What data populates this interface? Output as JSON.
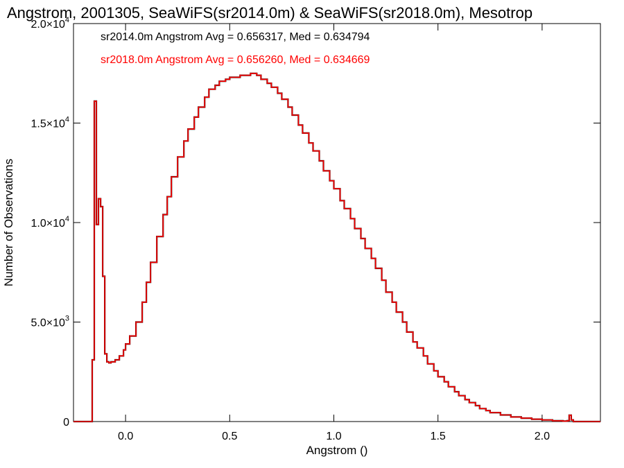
{
  "chart_data": {
    "type": "line",
    "title": "Angstrom, 2001305, SeaWiFS(sr2014.0m) & SeaWiFS(sr2018.0m), Mesotrop",
    "xlabel": "Angstrom ()",
    "ylabel": "Number of Observations",
    "xlim": [
      -0.25,
      2.28
    ],
    "ylim": [
      0,
      20000
    ],
    "x_ticks": [
      0.0,
      0.5,
      1.0,
      1.5,
      2.0
    ],
    "x_tick_labels": [
      "0.0",
      "0.5",
      "1.0",
      "1.5",
      "2.0"
    ],
    "y_ticks": [
      0,
      5000,
      10000,
      15000,
      20000
    ],
    "y_tick_labels": [
      {
        "mantissa": "0",
        "exponent": ""
      },
      {
        "mantissa": "5.0×10",
        "exponent": "3"
      },
      {
        "mantissa": "1.0×10",
        "exponent": "4"
      },
      {
        "mantissa": "1.5×10",
        "exponent": "4"
      },
      {
        "mantissa": "2.0×10",
        "exponent": "4"
      }
    ],
    "grid": false,
    "legend_placement": "top-left",
    "annotations": [
      {
        "text": "sr2014.0m Angstrom Avg = 0.656317, Med = 0.634794",
        "color": "#000000"
      },
      {
        "text": "sr2018.0m Angstrom Avg = 0.656260, Med = 0.634669",
        "color": "#ff0000"
      }
    ],
    "series": [
      {
        "color": "#000000",
        "style": "step",
        "x": [
          -0.25,
          -0.16,
          -0.15,
          -0.14,
          -0.13,
          -0.12,
          -0.11,
          -0.1,
          -0.09,
          -0.08,
          -0.07,
          -0.05,
          -0.03,
          -0.01,
          0.0,
          0.02,
          0.05,
          0.08,
          0.1,
          0.12,
          0.15,
          0.18,
          0.2,
          0.22,
          0.25,
          0.28,
          0.3,
          0.33,
          0.35,
          0.38,
          0.4,
          0.43,
          0.45,
          0.48,
          0.5,
          0.53,
          0.55,
          0.58,
          0.6,
          0.63,
          0.65,
          0.68,
          0.7,
          0.73,
          0.75,
          0.78,
          0.8,
          0.83,
          0.85,
          0.88,
          0.9,
          0.93,
          0.95,
          0.98,
          1.0,
          1.03,
          1.05,
          1.08,
          1.1,
          1.13,
          1.15,
          1.18,
          1.2,
          1.23,
          1.25,
          1.28,
          1.3,
          1.33,
          1.35,
          1.38,
          1.4,
          1.43,
          1.45,
          1.48,
          1.5,
          1.53,
          1.55,
          1.58,
          1.6,
          1.63,
          1.65,
          1.68,
          1.7,
          1.73,
          1.75,
          1.8,
          1.85,
          1.9,
          1.95,
          2.0,
          2.05,
          2.1,
          2.12,
          2.13,
          2.14,
          2.15,
          2.2,
          2.28
        ],
        "y": [
          0,
          3100,
          16100,
          9900,
          11200,
          10800,
          7300,
          3400,
          3000,
          2950,
          3000,
          3100,
          3300,
          3600,
          3900,
          4300,
          5000,
          6000,
          7000,
          8000,
          9300,
          10400,
          11300,
          12300,
          13300,
          14100,
          14700,
          15300,
          15800,
          16300,
          16700,
          16900,
          17100,
          17200,
          17300,
          17300,
          17400,
          17400,
          17500,
          17400,
          17200,
          17000,
          16800,
          16500,
          16200,
          15800,
          15400,
          14900,
          14500,
          14000,
          13600,
          13100,
          12600,
          12100,
          11700,
          11100,
          10700,
          10200,
          9700,
          9200,
          8700,
          8200,
          7700,
          7100,
          6500,
          6000,
          5500,
          5000,
          4500,
          4000,
          3700,
          3300,
          2900,
          2550,
          2250,
          2000,
          1750,
          1500,
          1300,
          1100,
          950,
          800,
          650,
          550,
          450,
          330,
          230,
          170,
          120,
          80,
          40,
          20,
          40,
          320,
          80,
          0,
          0,
          0
        ]
      },
      {
        "color": "#ff0000",
        "style": "step",
        "x": [
          -0.25,
          -0.16,
          -0.15,
          -0.14,
          -0.13,
          -0.12,
          -0.11,
          -0.1,
          -0.09,
          -0.08,
          -0.07,
          -0.05,
          -0.03,
          -0.01,
          0.0,
          0.02,
          0.05,
          0.08,
          0.1,
          0.12,
          0.15,
          0.18,
          0.2,
          0.22,
          0.25,
          0.28,
          0.3,
          0.33,
          0.35,
          0.38,
          0.4,
          0.43,
          0.45,
          0.48,
          0.5,
          0.53,
          0.55,
          0.58,
          0.6,
          0.63,
          0.65,
          0.68,
          0.7,
          0.73,
          0.75,
          0.78,
          0.8,
          0.83,
          0.85,
          0.88,
          0.9,
          0.93,
          0.95,
          0.98,
          1.0,
          1.03,
          1.05,
          1.08,
          1.1,
          1.13,
          1.15,
          1.18,
          1.2,
          1.23,
          1.25,
          1.28,
          1.3,
          1.33,
          1.35,
          1.38,
          1.4,
          1.43,
          1.45,
          1.48,
          1.5,
          1.53,
          1.55,
          1.58,
          1.6,
          1.63,
          1.65,
          1.68,
          1.7,
          1.73,
          1.75,
          1.8,
          1.85,
          1.9,
          1.95,
          2.0,
          2.05,
          2.1,
          2.12,
          2.13,
          2.14,
          2.15,
          2.2,
          2.28
        ],
        "y": [
          0,
          3100,
          16100,
          9900,
          11200,
          10800,
          7300,
          3400,
          3000,
          2950,
          3000,
          3100,
          3300,
          3600,
          3900,
          4300,
          5000,
          6000,
          7000,
          8000,
          9300,
          10400,
          11300,
          12300,
          13300,
          14100,
          14700,
          15300,
          15800,
          16300,
          16700,
          16900,
          17100,
          17200,
          17300,
          17300,
          17400,
          17400,
          17500,
          17400,
          17200,
          17000,
          16800,
          16500,
          16200,
          15800,
          15400,
          14900,
          14500,
          14000,
          13600,
          13100,
          12600,
          12100,
          11700,
          11100,
          10700,
          10200,
          9700,
          9200,
          8700,
          8200,
          7700,
          7100,
          6500,
          6000,
          5500,
          5000,
          4500,
          4000,
          3700,
          3300,
          2900,
          2550,
          2250,
          2000,
          1750,
          1500,
          1300,
          1100,
          950,
          800,
          650,
          550,
          450,
          330,
          230,
          170,
          120,
          80,
          40,
          20,
          40,
          320,
          80,
          0,
          0,
          0
        ]
      }
    ]
  }
}
